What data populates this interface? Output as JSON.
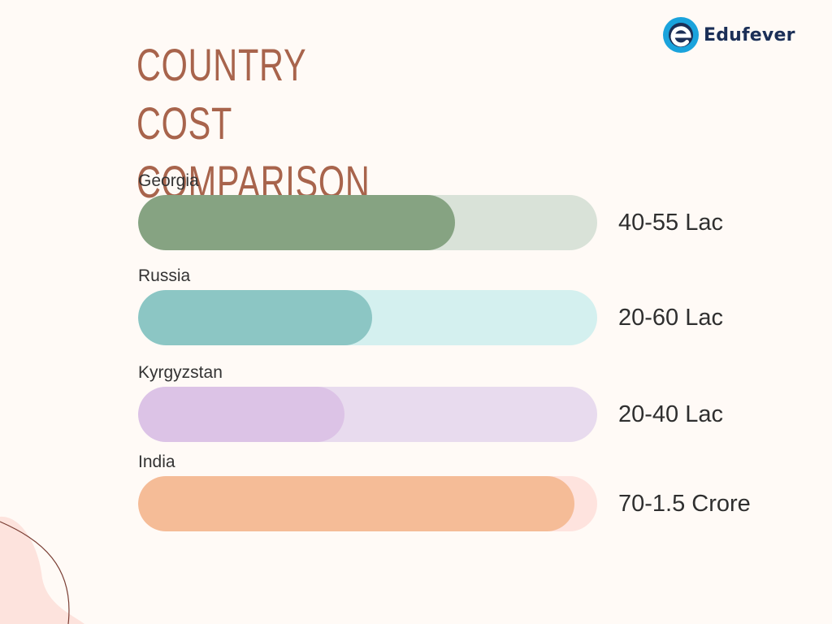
{
  "header": {
    "title": "COUNTRY COST COMPARISON"
  },
  "brand": {
    "name": "Edufever",
    "icon": "edufever-logo-icon",
    "colors": {
      "blue": "#1aa3dc",
      "navy": "#1b2f57"
    }
  },
  "chart_data": {
    "type": "bar",
    "orientation": "horizontal",
    "title": "COUNTRY COST COMPARISON",
    "categories": [
      "Georgia",
      "Russia",
      "Kyrgyzstan",
      "India"
    ],
    "value_labels": [
      "40-55 Lac",
      "20-60 Lac",
      "20-40 Lac",
      "70-1.5 Crore"
    ],
    "fill_fraction": [
      0.69,
      0.51,
      0.45,
      0.95
    ],
    "colors": {
      "fill": [
        "#86a382",
        "#8cc6c4",
        "#dcc3e6",
        "#f5bc97"
      ],
      "track": [
        "#d9e2d8",
        "#d4f0ef",
        "#e8dbee",
        "#fee3de"
      ]
    },
    "grid": false,
    "legend": "none"
  }
}
